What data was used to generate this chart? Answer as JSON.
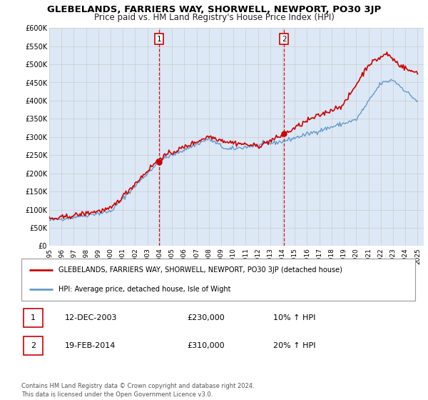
{
  "title": "GLEBELANDS, FARRIERS WAY, SHORWELL, NEWPORT, PO30 3JP",
  "subtitle": "Price paid vs. HM Land Registry's House Price Index (HPI)",
  "ylim": [
    0,
    600000
  ],
  "xlim_start": 1995.0,
  "xlim_end": 2025.5,
  "yticks": [
    0,
    50000,
    100000,
    150000,
    200000,
    250000,
    300000,
    350000,
    400000,
    450000,
    500000,
    550000,
    600000
  ],
  "ytick_labels": [
    "£0",
    "£50K",
    "£100K",
    "£150K",
    "£200K",
    "£250K",
    "£300K",
    "£350K",
    "£400K",
    "£450K",
    "£500K",
    "£550K",
    "£600K"
  ],
  "xticks": [
    1995,
    1996,
    1997,
    1998,
    1999,
    2000,
    2001,
    2002,
    2003,
    2004,
    2005,
    2006,
    2007,
    2008,
    2009,
    2010,
    2011,
    2012,
    2013,
    2014,
    2015,
    2016,
    2017,
    2018,
    2019,
    2020,
    2021,
    2022,
    2023,
    2024,
    2025
  ],
  "red_line_color": "#cc0000",
  "blue_line_color": "#6699cc",
  "grid_color": "#cccccc",
  "bg_color": "#dce8f5",
  "sale1_x": 2003.95,
  "sale1_y": 230000,
  "sale2_x": 2014.13,
  "sale2_y": 310000,
  "vline1_x": 2003.95,
  "vline2_x": 2014.13,
  "legend_line1": "GLEBELANDS, FARRIERS WAY, SHORWELL, NEWPORT, PO30 3JP (detached house)",
  "legend_line2": "HPI: Average price, detached house, Isle of Wight",
  "table_row1_num": "1",
  "table_row1_date": "12-DEC-2003",
  "table_row1_price": "£230,000",
  "table_row1_hpi": "10% ↑ HPI",
  "table_row2_num": "2",
  "table_row2_date": "19-FEB-2014",
  "table_row2_price": "£310,000",
  "table_row2_hpi": "20% ↑ HPI",
  "footnote": "Contains HM Land Registry data © Crown copyright and database right 2024.\nThis data is licensed under the Open Government Licence v3.0."
}
